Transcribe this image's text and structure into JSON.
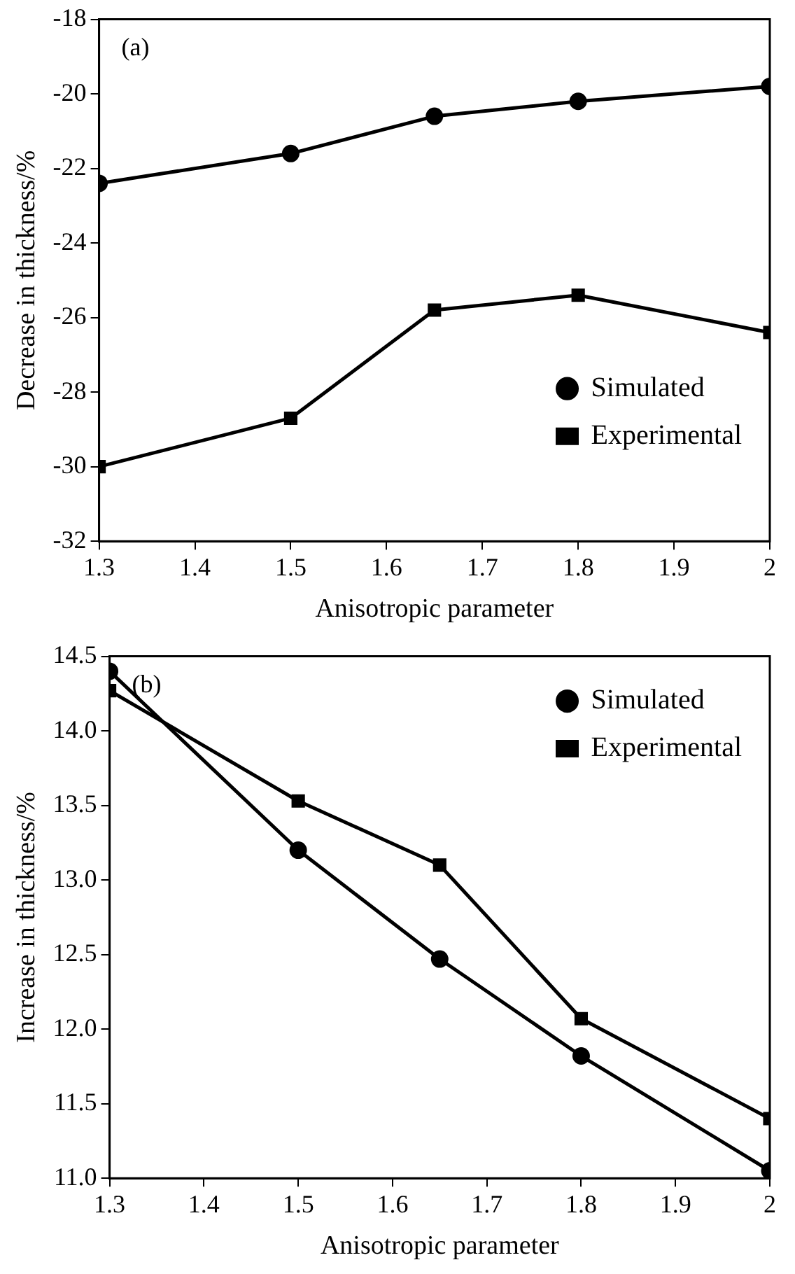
{
  "chart_data": [
    {
      "type": "line",
      "xlabel": "Anisotropic parameter",
      "ylabel": "Decrease in thickness/%",
      "annotations": [
        "(a)"
      ],
      "x": [
        1.3,
        1.5,
        1.65,
        1.8,
        2.0
      ],
      "series": [
        {
          "name": "Simulated",
          "color": "#000000",
          "marker": "circle",
          "values": [
            -22.4,
            -21.6,
            -20.6,
            -20.2,
            -19.8
          ]
        },
        {
          "name": "Experimental",
          "color": "#000000",
          "marker": "square",
          "values": [
            -30.0,
            -28.7,
            -25.8,
            -25.4,
            -26.4
          ]
        }
      ],
      "xlim": [
        1.3,
        2.0
      ],
      "xticks": [
        1.3,
        1.4,
        1.5,
        1.6,
        1.7,
        1.8,
        1.9,
        2.0
      ],
      "ylim": [
        -32,
        -18
      ],
      "yticks": [
        -32,
        -30,
        -28,
        -26,
        -24,
        -22,
        -20,
        -18
      ],
      "grid": false,
      "legend": "bottom right",
      "line_style": "solid"
    },
    {
      "type": "line",
      "xlabel": "Anisotropic parameter",
      "ylabel": "Increase in thickness/%",
      "annotations": [
        "(b)"
      ],
      "x": [
        1.3,
        1.5,
        1.65,
        1.8,
        2.0
      ],
      "series": [
        {
          "name": "Simulated",
          "color": "#000000",
          "marker": "circle",
          "values": [
            14.4,
            13.2,
            12.47,
            11.82,
            11.05
          ]
        },
        {
          "name": "Experimental",
          "color": "#000000",
          "marker": "square",
          "values": [
            14.27,
            13.53,
            13.1,
            12.07,
            11.4
          ]
        }
      ],
      "xlim": [
        1.3,
        2.0
      ],
      "xticks": [
        1.3,
        1.4,
        1.5,
        1.6,
        1.7,
        1.8,
        1.9,
        2.0
      ],
      "ylim": [
        11.0,
        14.5
      ],
      "yticks": [
        {
          "value": 11.0,
          "label": "11.0"
        },
        11.5,
        {
          "value": 12.0,
          "label": "12.0"
        },
        12.5,
        {
          "value": 13.0,
          "label": "13.0"
        },
        13.5,
        {
          "value": 14.0,
          "label": "14.0"
        },
        14.5
      ],
      "grid": false,
      "legend": "top right",
      "line_style": "solid"
    }
  ]
}
